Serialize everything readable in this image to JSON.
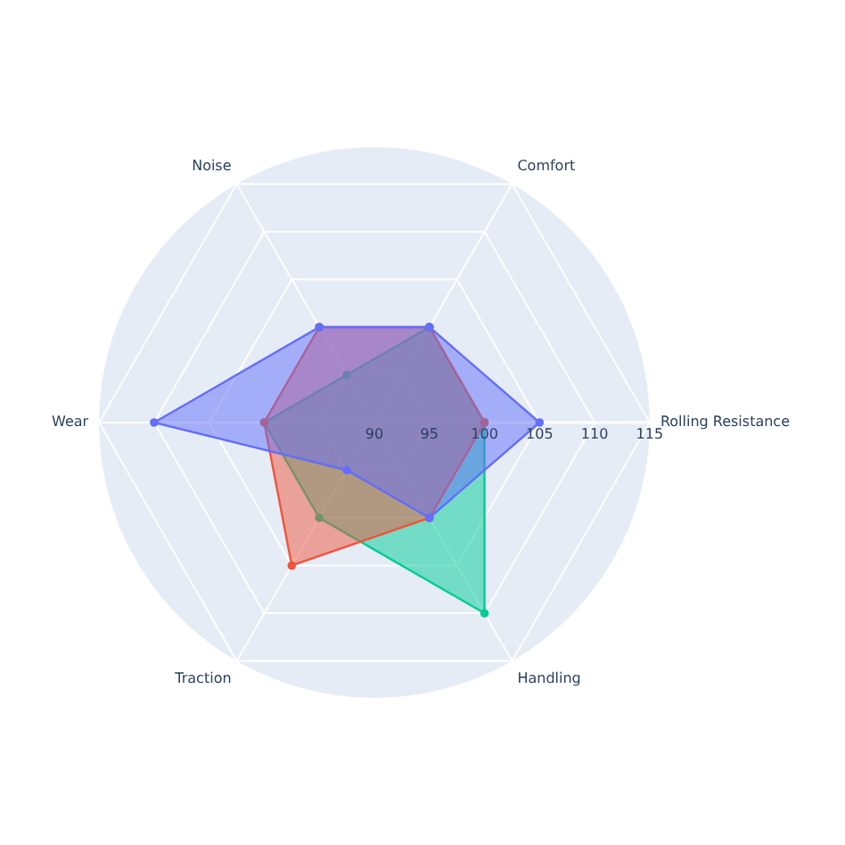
{
  "chart_data": {
    "type": "radar",
    "categories": [
      "Rolling Resistance",
      "Handling",
      "Traction",
      "Wear",
      "Noise",
      "Comfort"
    ],
    "series": [
      {
        "color": "#636efa",
        "values": [
          105,
          100,
          95,
          110,
          100,
          100
        ]
      },
      {
        "color": "#ef553b",
        "values": [
          100,
          100,
          105,
          100,
          100,
          100
        ]
      },
      {
        "color": "#00cc96",
        "values": [
          100,
          110,
          100,
          100,
          95,
          100
        ]
      }
    ],
    "ylim": [
      90,
      115
    ],
    "yticks": [
      90,
      95,
      100,
      105,
      110,
      115
    ],
    "grid": true,
    "legend": false,
    "marker": "circle"
  }
}
